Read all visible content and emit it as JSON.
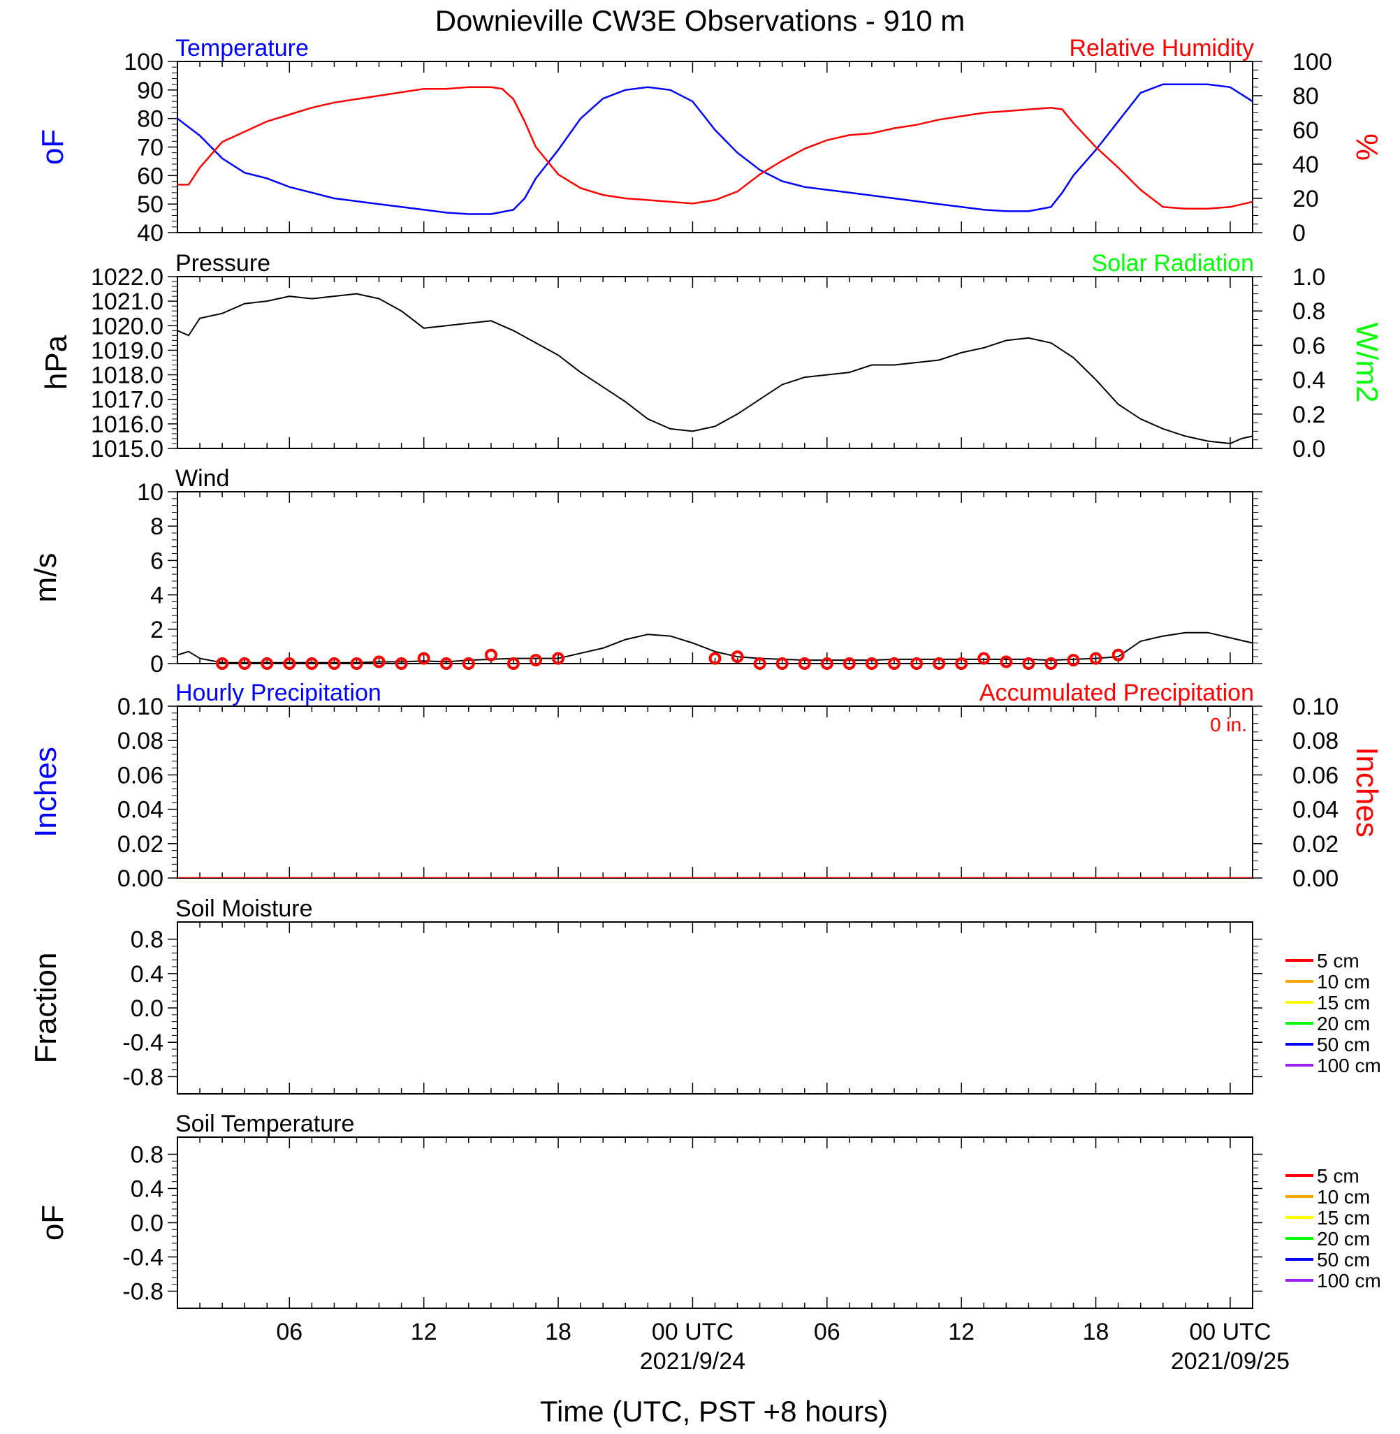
{
  "title": "Downieville CW3E Observations - 910 m",
  "x_axis": {
    "label": "Time (UTC, PST +8 hours)",
    "ticks": [
      {
        "hour": 6,
        "label": "06"
      },
      {
        "hour": 12,
        "label": "12"
      },
      {
        "hour": 18,
        "label": "18"
      },
      {
        "hour": 24,
        "label": "00 UTC",
        "sublabel": "2021/9/24"
      },
      {
        "hour": 30,
        "label": "06"
      },
      {
        "hour": 36,
        "label": "12"
      },
      {
        "hour": 42,
        "label": "18"
      },
      {
        "hour": 48,
        "label": "00 UTC",
        "sublabel": "2021/09/25"
      }
    ],
    "range_hours": [
      1,
      49
    ]
  },
  "colors": {
    "blue": "#0000ff",
    "red": "#ff0000",
    "green": "#00ff00",
    "black": "#000000"
  },
  "chart_data": [
    {
      "type": "line",
      "panel": "temperature_rh",
      "title_left": "Temperature",
      "title_right": "Relative Humidity",
      "ylabel_left": "oF",
      "ylabel_right": "%",
      "ylim_left": [
        40,
        100
      ],
      "ylim_right": [
        0,
        100
      ],
      "yticks_left": [
        "40",
        "50",
        "60",
        "70",
        "80",
        "90",
        "100"
      ],
      "yticks_right": [
        "0",
        "20",
        "40",
        "60",
        "80",
        "100"
      ],
      "series": [
        {
          "name": "Temperature",
          "axis": "left",
          "color": "#0000ff",
          "x": [
            1,
            2,
            3,
            4,
            5,
            6,
            7,
            8,
            9,
            10,
            11,
            12,
            13,
            14,
            15,
            16,
            16.5,
            17,
            18,
            19,
            20,
            21,
            22,
            23,
            24,
            25,
            26,
            27,
            28,
            29,
            30,
            31,
            32,
            33,
            34,
            35,
            36,
            37,
            38,
            39,
            40,
            40.5,
            41,
            42,
            43,
            44,
            45,
            46,
            47,
            48,
            49
          ],
          "y": [
            80,
            74,
            66,
            61,
            59,
            56,
            54,
            52,
            51,
            50,
            49,
            48,
            47,
            46.5,
            46.5,
            48,
            52,
            59,
            69,
            80,
            87,
            90,
            91,
            90,
            86,
            76,
            68,
            62,
            58,
            56,
            55,
            54,
            53,
            52,
            51,
            50,
            49,
            48,
            47.5,
            47.5,
            49,
            54,
            60,
            69,
            79,
            89,
            92,
            92,
            92,
            91,
            86
          ]
        },
        {
          "name": "Relative Humidity",
          "axis": "right",
          "color": "#ff0000",
          "x": [
            1,
            1.5,
            2,
            3,
            4,
            5,
            6,
            7,
            8,
            9,
            10,
            11,
            12,
            13,
            14,
            15,
            15.5,
            16,
            16.5,
            17,
            18,
            19,
            20,
            21,
            22,
            23,
            24,
            25,
            26,
            27,
            28,
            29,
            30,
            31,
            32,
            33,
            34,
            35,
            36,
            37,
            38,
            39,
            40,
            40.5,
            41,
            42,
            43,
            44,
            45,
            46,
            47,
            48,
            49
          ],
          "y": [
            28,
            28,
            38,
            53,
            59,
            65,
            69,
            73,
            76,
            78,
            80,
            82,
            84,
            84,
            85,
            85,
            84,
            78,
            65,
            50,
            34,
            26,
            22,
            20,
            19,
            18,
            17,
            19,
            24,
            34,
            42,
            49,
            54,
            57,
            58,
            61,
            63,
            66,
            68,
            70,
            71,
            72,
            73,
            72,
            64,
            50,
            38,
            25,
            15,
            14,
            14,
            15,
            18
          ]
        }
      ]
    },
    {
      "type": "line",
      "panel": "pressure",
      "title_left": "Pressure",
      "title_right": "Solar Radiation",
      "ylabel_left": "hPa",
      "ylabel_right": "W/m2",
      "ylim_left": [
        1015,
        1022
      ],
      "ylim_right": [
        0,
        1
      ],
      "yticks_left": [
        "1015.0",
        "1016.0",
        "1017.0",
        "1018.0",
        "1019.0",
        "1020.0",
        "1021.0",
        "1022.0"
      ],
      "yticks_right": [
        "0.0",
        "0.2",
        "0.4",
        "0.6",
        "0.8",
        "1.0"
      ],
      "series": [
        {
          "axis": "left",
          "color": "#000000",
          "x": [
            1,
            1.5,
            2,
            3,
            4,
            5,
            6,
            7,
            8,
            9,
            10,
            11,
            12,
            13,
            14,
            15,
            16,
            17,
            18,
            19,
            20,
            21,
            22,
            23,
            24,
            25,
            26,
            27,
            28,
            29,
            30,
            31,
            32,
            33,
            34,
            35,
            36,
            37,
            38,
            39,
            40,
            41,
            42,
            43,
            44,
            45,
            46,
            47,
            48,
            48.5,
            49
          ],
          "y": [
            1019.8,
            1019.6,
            1020.3,
            1020.5,
            1020.9,
            1021.0,
            1021.2,
            1021.1,
            1021.2,
            1021.3,
            1021.1,
            1020.6,
            1019.9,
            1020.0,
            1020.1,
            1020.2,
            1019.8,
            1019.3,
            1018.8,
            1018.1,
            1017.5,
            1016.9,
            1016.2,
            1015.8,
            1015.7,
            1015.9,
            1016.4,
            1017.0,
            1017.6,
            1017.9,
            1018.0,
            1018.1,
            1018.4,
            1018.4,
            1018.5,
            1018.6,
            1018.9,
            1019.1,
            1019.4,
            1019.5,
            1019.3,
            1018.7,
            1017.8,
            1016.8,
            1016.2,
            1015.8,
            1015.5,
            1015.3,
            1015.2,
            1015.4,
            1015.5
          ]
        }
      ]
    },
    {
      "type": "line",
      "panel": "wind",
      "title_left": "Wind",
      "ylabel_left": "m/s",
      "ylim_left": [
        0,
        10
      ],
      "yticks_left": [
        "0",
        "2",
        "4",
        "6",
        "8",
        "10"
      ],
      "series": [
        {
          "axis": "left",
          "color": "#000000",
          "x": [
            1,
            1.5,
            2,
            3,
            4,
            5,
            6,
            7,
            8,
            9,
            10,
            11,
            12,
            13,
            14,
            15,
            16,
            17,
            18,
            19,
            20,
            21,
            22,
            23,
            24,
            25,
            26,
            27,
            28,
            29,
            30,
            31,
            32,
            33,
            34,
            35,
            36,
            37,
            38,
            39,
            40,
            41,
            42,
            43,
            44,
            45,
            46,
            47,
            48,
            49
          ],
          "y": [
            0.5,
            0.7,
            0.3,
            0.05,
            0.05,
            0.05,
            0.05,
            0.05,
            0.05,
            0.05,
            0.1,
            0.1,
            0.15,
            0.1,
            0.2,
            0.25,
            0.3,
            0.3,
            0.3,
            0.6,
            0.9,
            1.4,
            1.7,
            1.6,
            1.2,
            0.7,
            0.4,
            0.3,
            0.25,
            0.2,
            0.2,
            0.2,
            0.2,
            0.25,
            0.25,
            0.25,
            0.25,
            0.25,
            0.25,
            0.25,
            0.2,
            0.25,
            0.3,
            0.4,
            1.3,
            1.6,
            1.8,
            1.8,
            1.5,
            1.2
          ]
        },
        {
          "name": "hourly wind",
          "axis": "left",
          "color": "#ff0000",
          "marker": "circle",
          "x": [
            3,
            4,
            5,
            6,
            7,
            8,
            9,
            10,
            11,
            12,
            13,
            14,
            15,
            16,
            17,
            18,
            25,
            26,
            27,
            28,
            29,
            30,
            31,
            32,
            33,
            34,
            35,
            36,
            37,
            38,
            39,
            40,
            41,
            42,
            43
          ],
          "y": [
            0,
            0,
            0,
            0,
            0,
            0,
            0,
            0.1,
            0,
            0.3,
            0,
            0,
            0.5,
            0,
            0.2,
            0.3,
            0.3,
            0.4,
            0,
            0,
            0,
            0,
            0,
            0,
            0,
            0,
            0,
            0,
            0.3,
            0.1,
            0,
            0,
            0.2,
            0.3,
            0.5
          ]
        }
      ]
    },
    {
      "type": "line",
      "panel": "precipitation",
      "title_left": "Hourly Precipitation",
      "title_right": "Accumulated Precipitation",
      "annotation": "0 in.",
      "ylabel_left": "Inches",
      "ylabel_right": "Inches",
      "ylim_left": [
        0,
        0.1
      ],
      "ylim_right": [
        0,
        0.1
      ],
      "yticks_left": [
        "0.00",
        "0.02",
        "0.04",
        "0.06",
        "0.08",
        "0.10"
      ],
      "yticks_right": [
        "0.00",
        "0.02",
        "0.04",
        "0.06",
        "0.08",
        "0.10"
      ],
      "series": [
        {
          "name": "Accumulated Precipitation",
          "axis": "right",
          "color": "#ff0000",
          "x": [
            1,
            49
          ],
          "y": [
            0,
            0
          ]
        }
      ]
    },
    {
      "type": "line",
      "panel": "soil_moisture",
      "title_left": "Soil Moisture",
      "ylabel_left": "Fraction",
      "ylim_left": [
        -1,
        1
      ],
      "yticks_left": [
        "-0.8",
        "-0.4",
        "0.0",
        "0.4",
        "0.8"
      ],
      "legend": [
        {
          "label": "5 cm",
          "color": "#ff0000"
        },
        {
          "label": "10 cm",
          "color": "#ffa500"
        },
        {
          "label": "15 cm",
          "color": "#ffff00"
        },
        {
          "label": "20 cm",
          "color": "#00ff00"
        },
        {
          "label": "50 cm",
          "color": "#0000ff"
        },
        {
          "label": "100 cm",
          "color": "#a020f0"
        }
      ],
      "series": []
    },
    {
      "type": "line",
      "panel": "soil_temperature",
      "title_left": "Soil Temperature",
      "ylabel_left": "oF",
      "ylim_left": [
        -1,
        1
      ],
      "yticks_left": [
        "-0.8",
        "-0.4",
        "0.0",
        "0.4",
        "0.8"
      ],
      "legend": [
        {
          "label": "5 cm",
          "color": "#ff0000"
        },
        {
          "label": "10 cm",
          "color": "#ffa500"
        },
        {
          "label": "15 cm",
          "color": "#ffff00"
        },
        {
          "label": "20 cm",
          "color": "#00ff00"
        },
        {
          "label": "50 cm",
          "color": "#0000ff"
        },
        {
          "label": "100 cm",
          "color": "#a020f0"
        }
      ],
      "series": []
    }
  ]
}
